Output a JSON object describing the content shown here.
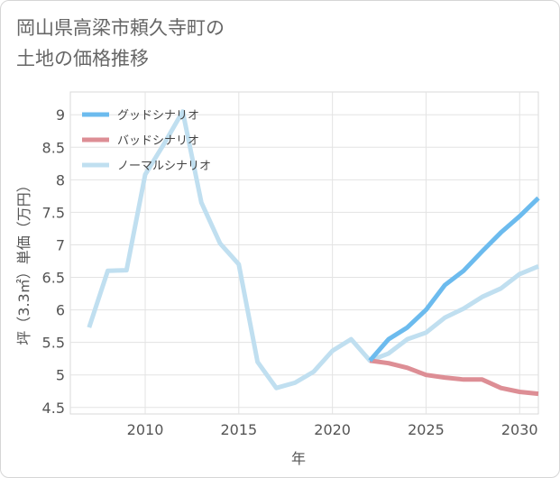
{
  "title": "岡山県高梁市頼久寺町の\n土地の価格推移",
  "chart_data": {
    "type": "line",
    "xlabel": "年",
    "ylabel": "坪（3.3㎡）単価（万円）",
    "xlim": [
      2006,
      2031
    ],
    "ylim": [
      4.4,
      9.35
    ],
    "xticks": [
      2010,
      2015,
      2020,
      2025,
      2030
    ],
    "yticks": [
      4.5,
      5,
      5.5,
      6,
      6.5,
      7,
      7.5,
      8,
      8.5,
      9
    ],
    "grid": true,
    "legend_position": "top-left",
    "series": [
      {
        "name": "グッドシナリオ",
        "color": "#6cbbee",
        "x": [
          2022,
          2023,
          2024,
          2025,
          2026,
          2027,
          2028,
          2029,
          2030,
          2031
        ],
        "y": [
          5.22,
          5.55,
          5.73,
          6.0,
          6.38,
          6.6,
          6.9,
          7.19,
          7.44,
          7.72
        ]
      },
      {
        "name": "バッドシナリオ",
        "color": "#dd8e95",
        "x": [
          2022,
          2023,
          2024,
          2025,
          2026,
          2027,
          2028,
          2029,
          2030,
          2031
        ],
        "y": [
          5.22,
          5.18,
          5.11,
          5.0,
          4.96,
          4.93,
          4.93,
          4.8,
          4.74,
          4.71
        ]
      },
      {
        "name": "ノーマルシナリオ",
        "color": "#c0dff0",
        "x": [
          2007,
          2008,
          2009,
          2010,
          2011,
          2012,
          2013,
          2014,
          2015,
          2016,
          2017,
          2018,
          2019,
          2020,
          2021,
          2022,
          2023,
          2024,
          2025,
          2026,
          2027,
          2028,
          2029,
          2030,
          2031
        ],
        "y": [
          5.73,
          6.6,
          6.61,
          8.08,
          8.55,
          9.05,
          7.65,
          7.02,
          6.7,
          5.2,
          4.8,
          4.88,
          5.05,
          5.37,
          5.55,
          5.22,
          5.33,
          5.55,
          5.65,
          5.88,
          6.02,
          6.2,
          6.33,
          6.55,
          6.67
        ]
      }
    ]
  }
}
